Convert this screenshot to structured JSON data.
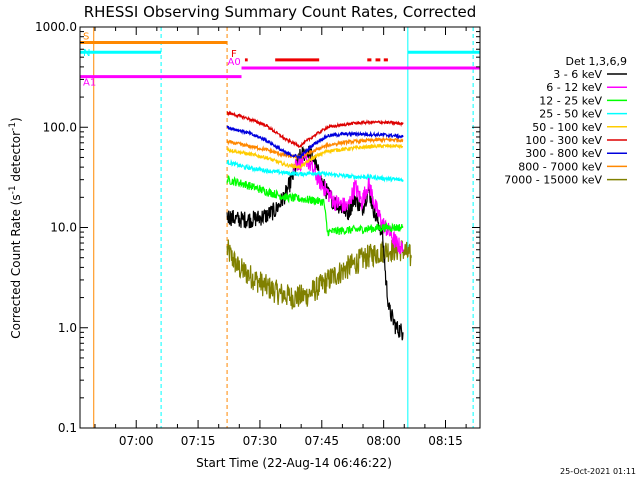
{
  "chart_data": {
    "type": "line",
    "title": "RHESSI Observing Summary Count Rates, Corrected",
    "xlabel": "Start Time (22-Aug-14 06:46:22)",
    "ylabel": "Corrected Count Rate (s⁻¹ detector⁻¹)",
    "ylabel_parts": [
      "Corrected Count Rate (s",
      "-1",
      " detector",
      "-1",
      ")"
    ],
    "y_scale": "log",
    "ylim": [
      0.1,
      1000
    ],
    "xlim": [
      0,
      5820
    ],
    "y_ticks": [
      {
        "value": 1000,
        "label": "1000.0"
      },
      {
        "value": 100,
        "label": "100.0"
      },
      {
        "value": 10,
        "label": "10.0"
      },
      {
        "value": 1,
        "label": "1.0"
      },
      {
        "value": 0.1,
        "label": "0.1"
      }
    ],
    "x_ticks": [
      {
        "t": 818,
        "label": "07:00"
      },
      {
        "t": 1718,
        "label": "07:15"
      },
      {
        "t": 2618,
        "label": "07:30"
      },
      {
        "t": 3518,
        "label": "07:45"
      },
      {
        "t": 4418,
        "label": "08:00"
      },
      {
        "t": 5318,
        "label": "08:15"
      }
    ],
    "legend": {
      "title": "Det 1,3,6,9",
      "placement": "right",
      "entries": [
        {
          "label": "3 - 6 keV",
          "color": "#000000"
        },
        {
          "label": "6 - 12 keV",
          "color": "#ff00ff"
        },
        {
          "label": "12 - 25 keV",
          "color": "#00ff00"
        },
        {
          "label": "25 - 50 keV",
          "color": "#00ffff"
        },
        {
          "label": "50 - 100 keV",
          "color": "#ffcc00"
        },
        {
          "label": "100 - 300 keV",
          "color": "#dd0000"
        },
        {
          "label": "300 - 800 keV",
          "color": "#0000dd"
        },
        {
          "label": "800 - 7000 keV",
          "color": "#ff8800"
        },
        {
          "label": "7000 - 15000 keV",
          "color": "#808000"
        }
      ]
    },
    "series": [
      {
        "name": "7000 - 15000 keV",
        "color": "#808000",
        "noise": 0.35,
        "x": [
          2140,
          2300,
          2500,
          2700,
          2900,
          3100,
          3300,
          3500,
          3700,
          3900,
          4100,
          4300,
          4500,
          4700,
          4820
        ],
        "y": [
          6,
          4,
          3.2,
          2.6,
          2.2,
          2.0,
          2.1,
          2.6,
          3.3,
          4.0,
          4.8,
          5.5,
          6,
          6,
          5
        ]
      },
      {
        "name": "3 - 6 keV",
        "color": "#000000",
        "noise": 0.25,
        "x": [
          2140,
          2300,
          2500,
          2700,
          2850,
          3000,
          3100,
          3200,
          3300,
          3400,
          3500,
          3600,
          3700,
          3800,
          3900,
          4000,
          4100,
          4200,
          4300,
          4400,
          4450,
          4500,
          4600,
          4700
        ],
        "y": [
          13,
          12,
          12,
          13,
          15,
          22,
          33,
          50,
          58,
          48,
          30,
          22,
          18,
          16,
          14,
          20,
          15,
          24,
          13,
          9,
          3,
          1.5,
          1.0,
          0.9
        ]
      },
      {
        "name": "6 - 12 keV",
        "color": "#ff00ff",
        "noise": 0.25,
        "x": [
          3100,
          3300,
          3500,
          3700,
          3900,
          4000,
          4100,
          4200,
          4300,
          4400,
          4500,
          4600,
          4700
        ],
        "y": [
          42,
          48,
          28,
          18,
          16,
          26,
          18,
          28,
          16,
          11,
          9,
          7,
          6
        ]
      },
      {
        "name": "12 - 25 keV",
        "color": "#00ff00",
        "noise": 0.12,
        "x": [
          2140,
          2400,
          2700,
          3000,
          3300,
          3550,
          3600,
          3800,
          4000,
          4200,
          4400,
          4600,
          4700
        ],
        "y": [
          30,
          27,
          23,
          20,
          19,
          18,
          9,
          9.3,
          9.5,
          9.7,
          10,
          10,
          10
        ]
      },
      {
        "name": "25 - 50 keV",
        "color": "#00ffff",
        "noise": 0.06,
        "x": [
          2140,
          2400,
          2700,
          3000,
          3200,
          3400,
          3600,
          3800,
          4000,
          4200,
          4400,
          4600,
          4700
        ],
        "y": [
          45,
          40,
          37,
          35,
          34,
          35,
          34,
          33,
          32,
          32,
          31,
          30,
          30
        ]
      },
      {
        "name": "50 - 100 keV",
        "color": "#ffcc00",
        "noise": 0.05,
        "x": [
          2140,
          2400,
          2700,
          3000,
          3200,
          3400,
          3600,
          3800,
          4000,
          4200,
          4400,
          4600,
          4700
        ],
        "y": [
          60,
          55,
          50,
          42,
          40,
          50,
          58,
          60,
          62,
          64,
          65,
          65,
          64
        ]
      },
      {
        "name": "800 - 7000 keV",
        "color": "#ff8800",
        "noise": 0.05,
        "x": [
          2140,
          2400,
          2700,
          3000,
          3200,
          3400,
          3600,
          3800,
          4000,
          4200,
          4400,
          4600,
          4700
        ],
        "y": [
          72,
          66,
          60,
          52,
          50,
          58,
          66,
          70,
          72,
          74,
          75,
          75,
          74
        ]
      },
      {
        "name": "300 - 800 keV",
        "color": "#0000dd",
        "noise": 0.05,
        "x": [
          2140,
          2400,
          2700,
          3000,
          3200,
          3400,
          3600,
          3800,
          4000,
          4200,
          4400,
          4600,
          4700
        ],
        "y": [
          100,
          90,
          75,
          55,
          50,
          68,
          82,
          85,
          86,
          85,
          84,
          82,
          80
        ]
      },
      {
        "name": "100 - 300 keV",
        "color": "#dd0000",
        "noise": 0.04,
        "x": [
          2140,
          2400,
          2700,
          3000,
          3200,
          3400,
          3600,
          3800,
          4000,
          4200,
          4400,
          4600,
          4700
        ],
        "y": [
          140,
          125,
          105,
          75,
          65,
          82,
          100,
          105,
          110,
          112,
          112,
          110,
          108
        ]
      }
    ],
    "state_bars": [
      {
        "label": "S",
        "color": "#ff8800",
        "y": 700,
        "x1": 0,
        "x2": 2140
      },
      {
        "label": "N",
        "color": "#00ffff",
        "y": 560,
        "x1": 0,
        "x2": 1180
      },
      {
        "label": "",
        "color": "#00ffff",
        "y": 560,
        "x1": 4770,
        "x2": 5820
      },
      {
        "label": "F",
        "color": "#ee0000",
        "y": 470,
        "x1": 2400,
        "x2": 2440
      },
      {
        "label": "",
        "color": "#ee0000",
        "y": 470,
        "x1": 2840,
        "x2": 3480
      },
      {
        "label": "",
        "color": "#ee0000",
        "y": 470,
        "x1": 4180,
        "x2": 4240
      },
      {
        "label": "",
        "color": "#ee0000",
        "y": 470,
        "x1": 4300,
        "x2": 4370
      },
      {
        "label": "",
        "color": "#ee0000",
        "y": 470,
        "x1": 4420,
        "x2": 4480
      },
      {
        "label": "A0",
        "color": "#ff00ff",
        "y": 390,
        "x1": 2350,
        "x2": 5820
      },
      {
        "label": "A1",
        "color": "#ff00ff",
        "y": 320,
        "x1": 0,
        "x2": 2350
      }
    ],
    "vlines": [
      {
        "t": 0,
        "color": "#00ffff",
        "dashed": false
      },
      {
        "t": 200,
        "color": "#ff8800",
        "dashed": false
      },
      {
        "t": 1180,
        "color": "#00ffff",
        "dashed": true
      },
      {
        "t": 2140,
        "color": "#ff8800",
        "dashed": true
      },
      {
        "t": 4770,
        "color": "#00ffff",
        "dashed": false
      },
      {
        "t": 5720,
        "color": "#00ffff",
        "dashed": true
      }
    ]
  },
  "footer": {
    "timestamp": "25-Oct-2021 01:11"
  },
  "colors": {
    "axis": "#000000",
    "background": "#ffffff"
  }
}
